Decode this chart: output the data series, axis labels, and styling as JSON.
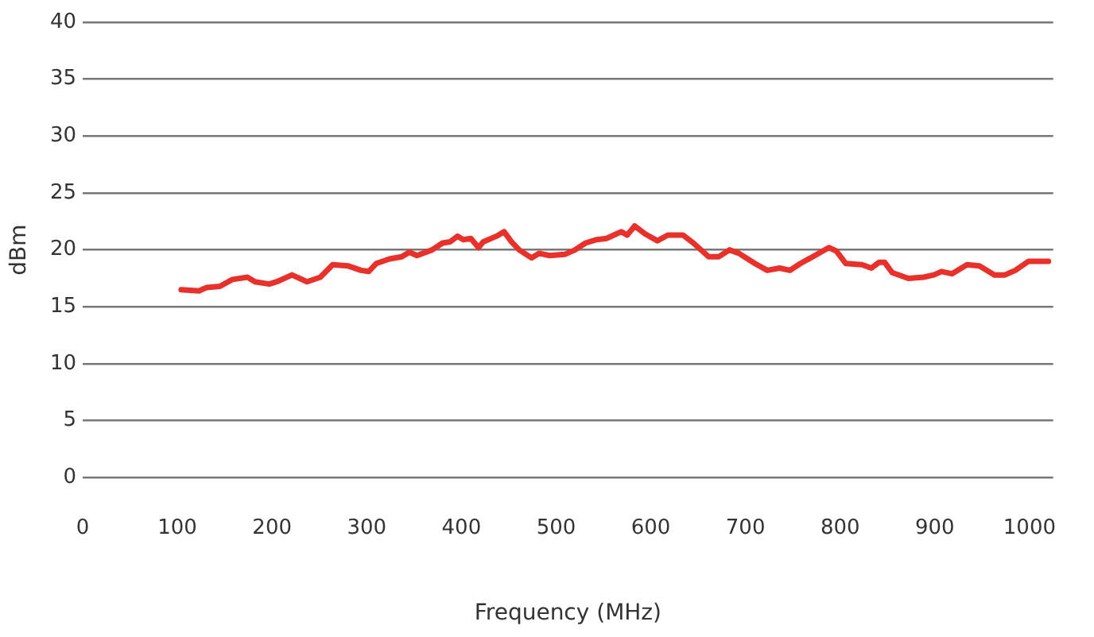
{
  "chart_data": {
    "type": "line",
    "xlabel": "Frequency (MHz)",
    "ylabel": "dBm",
    "xlim": [
      0,
      1025
    ],
    "xticks": [
      0,
      100,
      200,
      300,
      400,
      500,
      600,
      700,
      800,
      900,
      1000
    ],
    "ylim": [
      0,
      40
    ],
    "yticks": [
      0,
      5,
      10,
      15,
      20,
      25,
      30,
      35,
      40
    ],
    "grid": "y",
    "legend": false,
    "marker": "none",
    "line_style": "solid",
    "series": [
      {
        "color": "#e8312a",
        "x": [
          104,
          123,
          131,
          145,
          158,
          174,
          182,
          197,
          205,
          221,
          237,
          251,
          264,
          280,
          294,
          302,
          310,
          324,
          337,
          345,
          353,
          369,
          380,
          388,
          396,
          402,
          410,
          418,
          423,
          437,
          445,
          453,
          461,
          474,
          482,
          493,
          509,
          520,
          531,
          543,
          553,
          561,
          569,
          575,
          583,
          594,
          607,
          618,
          634,
          645,
          661,
          672,
          683,
          693,
          710,
          723,
          736,
          747,
          758,
          771,
          788,
          796,
          806,
          823,
          833,
          841,
          847,
          855,
          872,
          888,
          899,
          907,
          918,
          934,
          947,
          963,
          974,
          985,
          999,
          1020
        ],
        "values": [
          16.5,
          16.4,
          16.7,
          16.8,
          17.4,
          17.6,
          17.2,
          17.0,
          17.2,
          17.8,
          17.2,
          17.6,
          18.7,
          18.6,
          18.2,
          18.1,
          18.8,
          19.2,
          19.4,
          19.8,
          19.5,
          20.0,
          20.6,
          20.7,
          21.2,
          20.9,
          21.0,
          20.2,
          20.7,
          21.2,
          21.6,
          20.7,
          20.0,
          19.3,
          19.7,
          19.5,
          19.6,
          20.0,
          20.6,
          20.9,
          21.0,
          21.3,
          21.6,
          21.3,
          22.1,
          21.4,
          20.8,
          21.3,
          21.3,
          20.6,
          19.4,
          19.4,
          20.0,
          19.7,
          18.8,
          18.2,
          18.4,
          18.2,
          18.8,
          19.4,
          20.2,
          19.9,
          18.8,
          18.7,
          18.4,
          18.9,
          18.9,
          18.0,
          17.5,
          17.6,
          17.8,
          18.1,
          17.9,
          18.7,
          18.6,
          17.8,
          17.8,
          18.2,
          19.0,
          19.0
        ]
      }
    ]
  }
}
